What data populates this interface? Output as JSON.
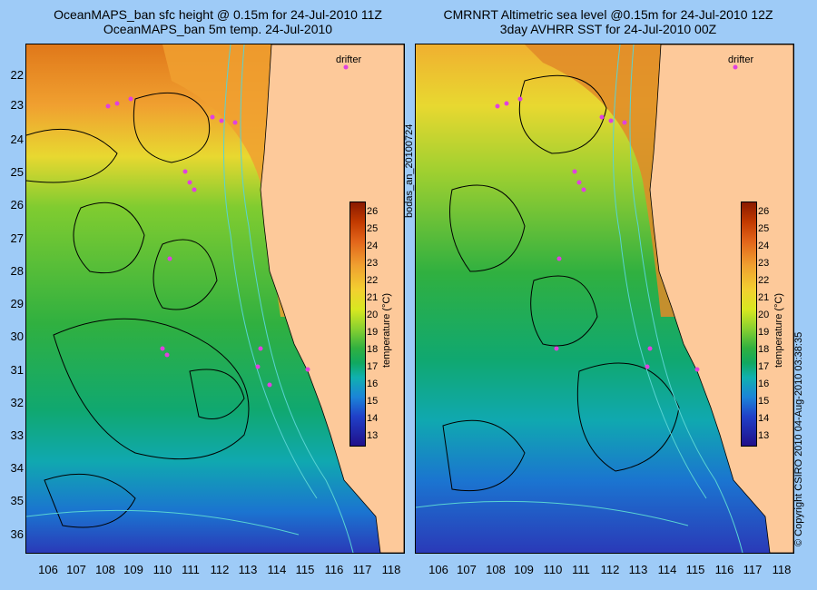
{
  "left_panel": {
    "title_line1": "OceanMAPS_ban sfc height @ 0.15m for 24-Jul-2010 11Z",
    "title_line2": "OceanMAPS_ban 5m temp. 24-Jul-2010"
  },
  "right_panel": {
    "title_line1": "CMRNRT Altimetric sea level  @0.15m  for 24-Jul-2010 12Z",
    "title_line2": "3day AVHRR SST for 24-Jul-2010 00Z"
  },
  "drifter_label": "drifter",
  "colorbar": {
    "label": "temperature (°C)",
    "ticks": [
      "26",
      "25",
      "24",
      "23",
      "22",
      "21",
      "20",
      "19",
      "18",
      "17",
      "16",
      "15",
      "14",
      "13"
    ]
  },
  "latitudes": [
    "22",
    "23",
    "24",
    "25",
    "26",
    "27",
    "28",
    "29",
    "30",
    "31",
    "32",
    "33",
    "34",
    "35",
    "36"
  ],
  "longitudes": [
    "106",
    "107",
    "108",
    "109",
    "110",
    "111",
    "112",
    "113",
    "114",
    "115",
    "116",
    "117",
    "118"
  ],
  "middle_vertical_text": "bodas_an_20100724",
  "right_vertical_text": "© Copyright CSIRO 2010    04-Aug-2010 03:38:35",
  "colors": {
    "background": "#9ecbf7",
    "land": "#fdc99a",
    "drifter": "#e040e0",
    "contour_ssh": "#000000",
    "contour_bathy": "#59d3d3"
  }
}
